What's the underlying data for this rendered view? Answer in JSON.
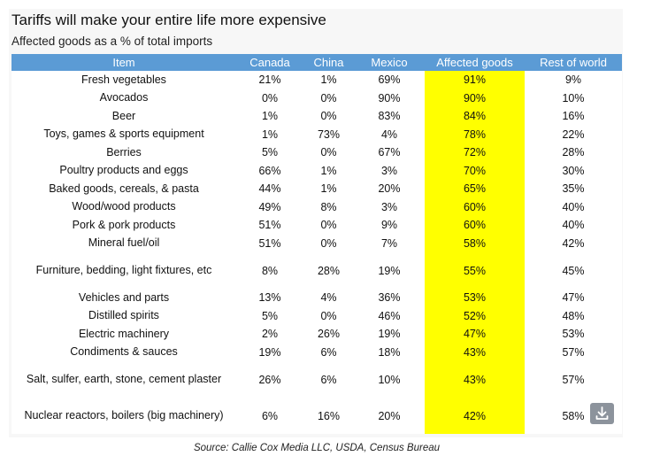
{
  "chart_data": {
    "type": "table",
    "title": "Tariffs will make your entire life more expensive",
    "subtitle": "Affected goods as a % of total imports",
    "columns": [
      "Item",
      "Canada",
      "China",
      "Mexico",
      "Affected goods",
      "Rest of world"
    ],
    "highlight_column": "Affected goods",
    "highlight_color": "#ffff00",
    "header_color": "#5b9bd5",
    "rows": [
      {
        "item": "Fresh vegetables",
        "canada": "21%",
        "china": "1%",
        "mexico": "69%",
        "affected": "91%",
        "rest": "9%"
      },
      {
        "item": "Avocados",
        "canada": "0%",
        "china": "0%",
        "mexico": "90%",
        "affected": "90%",
        "rest": "10%"
      },
      {
        "item": "Beer",
        "canada": "1%",
        "china": "0%",
        "mexico": "83%",
        "affected": "84%",
        "rest": "16%"
      },
      {
        "item": "Toys, games & sports equipment",
        "canada": "1%",
        "china": "73%",
        "mexico": "4%",
        "affected": "78%",
        "rest": "22%"
      },
      {
        "item": "Berries",
        "canada": "5%",
        "china": "0%",
        "mexico": "67%",
        "affected": "72%",
        "rest": "28%"
      },
      {
        "item": "Poultry products and eggs",
        "canada": "66%",
        "china": "1%",
        "mexico": "3%",
        "affected": "70%",
        "rest": "30%"
      },
      {
        "item": "Baked goods, cereals, & pasta",
        "canada": "44%",
        "china": "1%",
        "mexico": "20%",
        "affected": "65%",
        "rest": "35%"
      },
      {
        "item": "Wood/wood products",
        "canada": "49%",
        "china": "8%",
        "mexico": "3%",
        "affected": "60%",
        "rest": "40%"
      },
      {
        "item": "Pork & pork products",
        "canada": "51%",
        "china": "0%",
        "mexico": "9%",
        "affected": "60%",
        "rest": "40%"
      },
      {
        "item": "Mineral fuel/oil",
        "canada": "51%",
        "china": "0%",
        "mexico": "7%",
        "affected": "58%",
        "rest": "42%"
      },
      {
        "item": "Furniture, bedding, light fixtures, etc",
        "canada": "8%",
        "china": "28%",
        "mexico": "19%",
        "affected": "55%",
        "rest": "45%",
        "tall": true
      },
      {
        "item": "Vehicles and parts",
        "canada": "13%",
        "china": "4%",
        "mexico": "36%",
        "affected": "53%",
        "rest": "47%"
      },
      {
        "item": "Distilled spirits",
        "canada": "5%",
        "china": "0%",
        "mexico": "46%",
        "affected": "52%",
        "rest": "48%"
      },
      {
        "item": "Electric machinery",
        "canada": "2%",
        "china": "26%",
        "mexico": "19%",
        "affected": "47%",
        "rest": "53%"
      },
      {
        "item": "Condiments & sauces",
        "canada": "19%",
        "china": "6%",
        "mexico": "18%",
        "affected": "43%",
        "rest": "57%"
      },
      {
        "item": "Salt, sulfer, earth, stone, cement plaster",
        "canada": "26%",
        "china": "6%",
        "mexico": "10%",
        "affected": "43%",
        "rest": "57%",
        "tall": true
      },
      {
        "item": "Nuclear reactors, boilers (big machinery)",
        "canada": "6%",
        "china": "16%",
        "mexico": "20%",
        "affected": "42%",
        "rest": "58%",
        "tall": true
      }
    ],
    "source": "Source: Callie Cox Media LLC, USDA, Census Bureau"
  },
  "controls": {
    "download_icon": "download-icon"
  }
}
